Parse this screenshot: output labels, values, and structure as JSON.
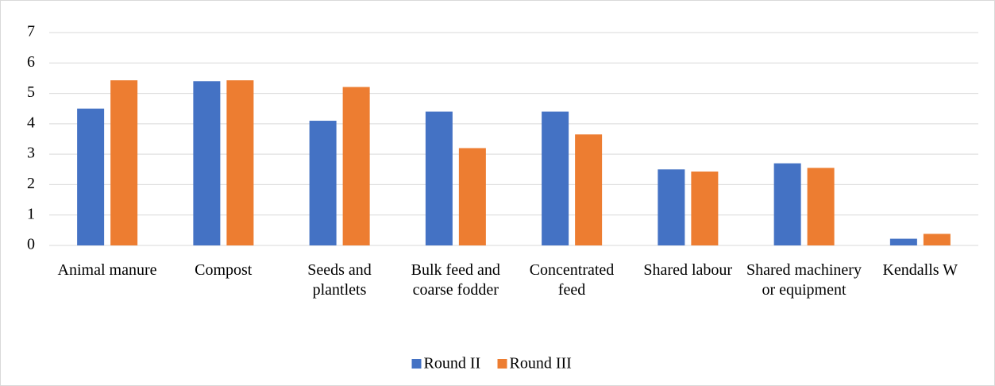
{
  "chart_data": {
    "type": "bar",
    "categories": [
      "Animal manure",
      "Compost",
      "Seeds and plantlets",
      "Bulk feed and coarse fodder",
      "Concentrated feed",
      "Shared labour",
      "Shared machinery or equipment",
      "Kendalls W"
    ],
    "series": [
      {
        "name": "Round II",
        "color": "#4472c4",
        "values": [
          4.5,
          5.4,
          4.1,
          4.4,
          4.4,
          2.5,
          2.7,
          0.22
        ]
      },
      {
        "name": "Round III",
        "color": "#ed7d31",
        "values": [
          5.43,
          5.43,
          5.21,
          3.2,
          3.65,
          2.43,
          2.55,
          0.38
        ]
      }
    ],
    "ylim": [
      0,
      7
    ],
    "yticks": [
      0,
      1,
      2,
      3,
      4,
      5,
      6,
      7
    ],
    "grid": true,
    "legend": "bottom"
  }
}
